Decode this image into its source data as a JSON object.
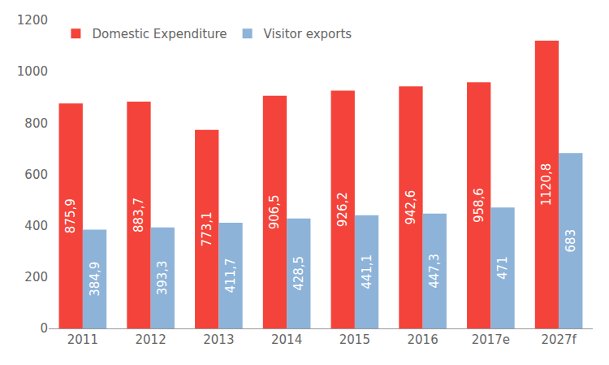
{
  "chart_data": {
    "type": "bar",
    "categories": [
      "2011",
      "2012",
      "2013",
      "2014",
      "2015",
      "2016",
      "2017e",
      "2027f"
    ],
    "series": [
      {
        "name": "Domestic Expenditure",
        "color": "#f4433a",
        "values": [
          875.9,
          883.7,
          773.1,
          906.5,
          926.2,
          942.6,
          958.6,
          1120.8
        ],
        "value_labels": [
          "875,9",
          "883,7",
          "773,1",
          "906,5",
          "926,2",
          "942,6",
          "958,6",
          "1120,8"
        ]
      },
      {
        "name": "Visitor exports",
        "color": "#8db3d8",
        "values": [
          384.9,
          393.3,
          411.7,
          428.5,
          441.1,
          447.3,
          471,
          683
        ],
        "value_labels": [
          "384,9",
          "393,3",
          "411,7",
          "428,5",
          "441,1",
          "447,3",
          "471",
          "683"
        ]
      }
    ],
    "ylim": [
      0,
      1200
    ],
    "yticks": [
      0,
      200,
      400,
      600,
      800,
      1000,
      1200
    ],
    "grid": false,
    "legend": "top-left",
    "data_labels": true
  }
}
